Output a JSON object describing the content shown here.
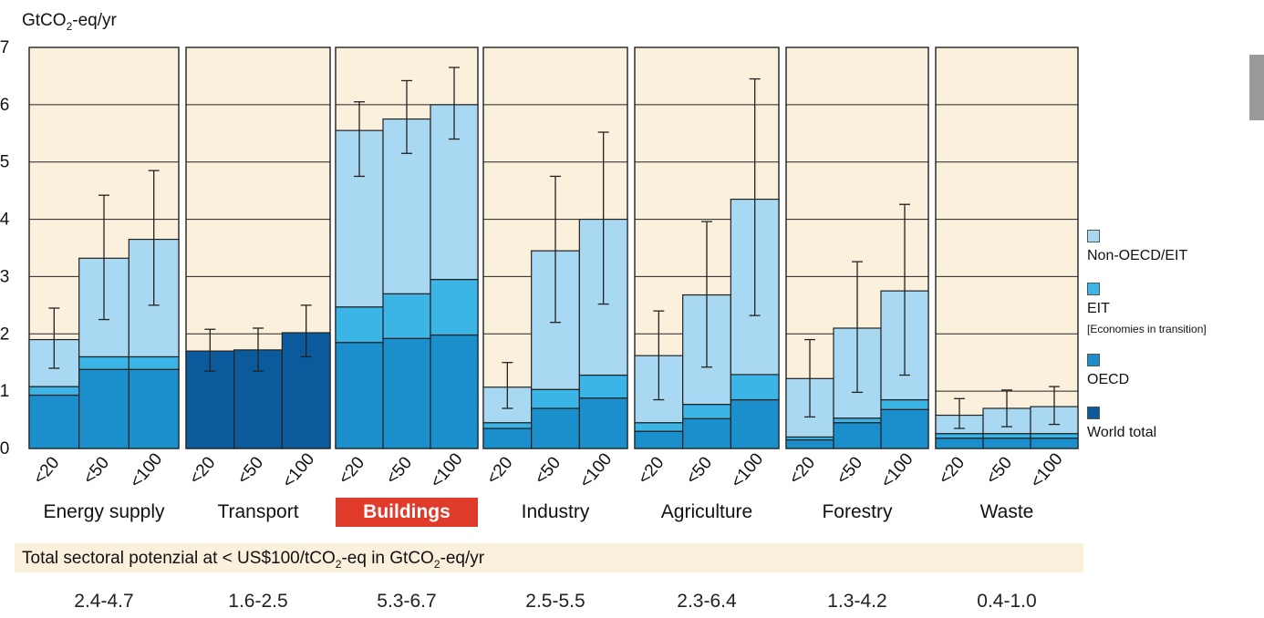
{
  "chart_data": {
    "type": "bar",
    "stacked": true,
    "ylabel_prefix": "GtCO",
    "ylabel_sub": "2",
    "ylabel_suffix": "-eq/yr",
    "ylim": [
      0,
      7
    ],
    "yticks": [
      "0",
      "1",
      "2",
      "3",
      "4",
      "5",
      "6",
      "7"
    ],
    "categories": [
      "<20",
      "<50",
      "<100"
    ],
    "colors": {
      "world_total": "#0b5a9c",
      "oecd": "#1a8fcc",
      "eit": "#3bb4e6",
      "non_oecd_eit": "#a9d9f2",
      "panel_bg": "#fbf0dc"
    },
    "legend": [
      {
        "key": "non_oecd_eit",
        "label": "Non-OECD/EIT",
        "sub": ""
      },
      {
        "key": "eit",
        "label": "EIT",
        "sub": "[Economies in transition]"
      },
      {
        "key": "oecd",
        "label": "OECD",
        "sub": ""
      },
      {
        "key": "world_total",
        "label": "World total",
        "sub": ""
      }
    ],
    "sectors": [
      {
        "name": "Energy supply",
        "highlight": false,
        "range": "2.4-4.7",
        "bars": [
          {
            "oecd": 0.93,
            "eit": 0.15,
            "non_oecd_eit": 0.82,
            "err": [
              1.4,
              2.45
            ]
          },
          {
            "oecd": 1.38,
            "eit": 0.22,
            "non_oecd_eit": 1.72,
            "err": [
              2.25,
              4.42
            ]
          },
          {
            "oecd": 1.38,
            "eit": 0.22,
            "non_oecd_eit": 2.05,
            "err": [
              2.5,
              4.85
            ]
          }
        ]
      },
      {
        "name": "Transport",
        "highlight": false,
        "range": "1.6-2.5",
        "bars": [
          {
            "world_total": 1.7,
            "err": [
              1.35,
              2.08
            ]
          },
          {
            "world_total": 1.72,
            "err": [
              1.35,
              2.1
            ]
          },
          {
            "world_total": 2.02,
            "err": [
              1.6,
              2.5
            ]
          }
        ]
      },
      {
        "name": "Buildings",
        "highlight": true,
        "range": "5.3-6.7",
        "bars": [
          {
            "oecd": 1.85,
            "eit": 0.62,
            "non_oecd_eit": 3.08,
            "err": [
              4.75,
              6.05
            ]
          },
          {
            "oecd": 1.92,
            "eit": 0.78,
            "non_oecd_eit": 3.05,
            "err": [
              5.15,
              6.42
            ]
          },
          {
            "oecd": 1.98,
            "eit": 0.97,
            "non_oecd_eit": 3.05,
            "err": [
              5.4,
              6.65
            ]
          }
        ]
      },
      {
        "name": "Industry",
        "highlight": false,
        "range": "2.5-5.5",
        "bars": [
          {
            "oecd": 0.35,
            "eit": 0.1,
            "non_oecd_eit": 0.62,
            "err": [
              0.7,
              1.5
            ]
          },
          {
            "oecd": 0.7,
            "eit": 0.33,
            "non_oecd_eit": 2.42,
            "err": [
              2.2,
              4.75
            ]
          },
          {
            "oecd": 0.88,
            "eit": 0.4,
            "non_oecd_eit": 2.72,
            "err": [
              2.52,
              5.52
            ]
          }
        ]
      },
      {
        "name": "Agriculture",
        "highlight": false,
        "range": "2.3-6.4",
        "bars": [
          {
            "oecd": 0.3,
            "eit": 0.15,
            "non_oecd_eit": 1.17,
            "err": [
              0.85,
              2.4
            ]
          },
          {
            "oecd": 0.52,
            "eit": 0.25,
            "non_oecd_eit": 1.91,
            "err": [
              1.42,
              3.96
            ]
          },
          {
            "oecd": 0.85,
            "eit": 0.44,
            "non_oecd_eit": 3.06,
            "err": [
              2.32,
              6.45
            ]
          }
        ]
      },
      {
        "name": "Forestry",
        "highlight": false,
        "range": "1.3-4.2",
        "bars": [
          {
            "oecd": 0.15,
            "eit": 0.05,
            "non_oecd_eit": 1.02,
            "err": [
              0.55,
              1.9
            ]
          },
          {
            "oecd": 0.45,
            "eit": 0.08,
            "non_oecd_eit": 1.57,
            "err": [
              0.98,
              3.26
            ]
          },
          {
            "oecd": 0.68,
            "eit": 0.17,
            "non_oecd_eit": 1.9,
            "err": [
              1.28,
              4.26
            ]
          }
        ]
      },
      {
        "name": "Waste",
        "highlight": false,
        "range": "0.4-1.0",
        "bars": [
          {
            "oecd": 0.18,
            "eit": 0.08,
            "non_oecd_eit": 0.32,
            "err": [
              0.35,
              0.87
            ]
          },
          {
            "oecd": 0.18,
            "eit": 0.08,
            "non_oecd_eit": 0.44,
            "err": [
              0.38,
              1.02
            ]
          },
          {
            "oecd": 0.18,
            "eit": 0.08,
            "non_oecd_eit": 0.47,
            "err": [
              0.42,
              1.08
            ]
          }
        ]
      }
    ],
    "total_prefix": "Total sectoral potenzial at < US$100/tCO",
    "total_sub1": "2",
    "total_mid": "-eq in GtCO",
    "total_sub2": "2",
    "total_suffix": "-eq/yr"
  }
}
